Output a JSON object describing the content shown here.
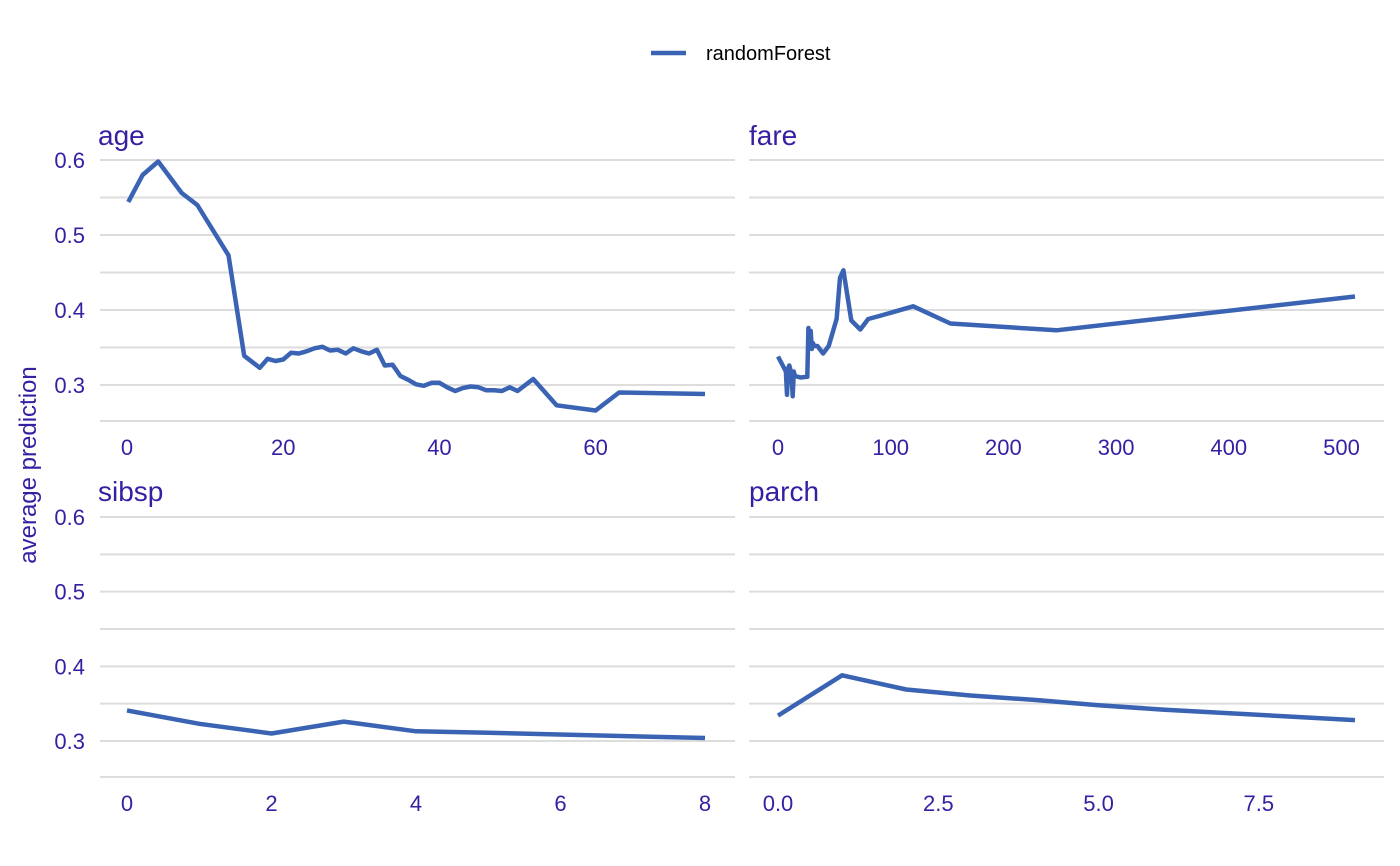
{
  "chart_data": {
    "type": "line",
    "legend": {
      "label": "randomForest",
      "color": "#3a64b3",
      "position": "top"
    },
    "ylabel": "average prediction",
    "ylim": [
      0.25,
      0.62
    ],
    "yticks": [
      0.3,
      0.4,
      0.5,
      0.6
    ],
    "ytick_labels": [
      "0.3",
      "0.4",
      "0.5",
      "0.6"
    ],
    "text_color": "#371ea3",
    "grid_color": "#dddddd",
    "panels": [
      {
        "title": "age",
        "xlim": [
          0,
          74
        ],
        "xticks": [
          0,
          20,
          40,
          60
        ],
        "xtick_labels": [
          "0",
          "20",
          "40",
          "60"
        ],
        "x": [
          0.17,
          2,
          4,
          7,
          9,
          13,
          15,
          17,
          18,
          19,
          20,
          21,
          22,
          23,
          24,
          25,
          26,
          27,
          28,
          29,
          30,
          31,
          32,
          33,
          34,
          35,
          36,
          37,
          38,
          39,
          40,
          41,
          42,
          43,
          44,
          45,
          46,
          47,
          48,
          49,
          50,
          52,
          55,
          60,
          63,
          74
        ],
        "y": [
          0.544,
          0.58,
          0.598,
          0.556,
          0.54,
          0.473,
          0.339,
          0.323,
          0.335,
          0.332,
          0.334,
          0.343,
          0.342,
          0.345,
          0.349,
          0.351,
          0.346,
          0.347,
          0.342,
          0.349,
          0.345,
          0.342,
          0.347,
          0.326,
          0.327,
          0.312,
          0.307,
          0.301,
          0.299,
          0.303,
          0.303,
          0.297,
          0.292,
          0.296,
          0.298,
          0.297,
          0.293,
          0.293,
          0.292,
          0.297,
          0.292,
          0.308,
          0.273,
          0.266,
          0.29,
          0.288
        ]
      },
      {
        "title": "fare",
        "xlim": [
          0,
          512
        ],
        "xticks": [
          0,
          100,
          200,
          300,
          400,
          500
        ],
        "xtick_labels": [
          "0",
          "100",
          "200",
          "300",
          "400",
          "500"
        ],
        "x": [
          0,
          7,
          8,
          9,
          10,
          12,
          13,
          14,
          15,
          20,
          26,
          27,
          28,
          29,
          30,
          31,
          32,
          35,
          40,
          45,
          52,
          55,
          58,
          65,
          73,
          80,
          90,
          120,
          153,
          247,
          512
        ],
        "y": [
          0.338,
          0.318,
          0.287,
          0.322,
          0.326,
          0.315,
          0.285,
          0.318,
          0.312,
          0.31,
          0.311,
          0.376,
          0.349,
          0.372,
          0.348,
          0.356,
          0.352,
          0.352,
          0.342,
          0.352,
          0.388,
          0.443,
          0.453,
          0.386,
          0.374,
          0.388,
          0.392,
          0.405,
          0.382,
          0.373,
          0.418
        ]
      },
      {
        "title": "sibsp",
        "xlim": [
          0,
          8
        ],
        "xticks": [
          0,
          2,
          4,
          6,
          8
        ],
        "xtick_labels": [
          "0",
          "2",
          "4",
          "6",
          "8"
        ],
        "x": [
          0,
          1,
          2,
          3,
          4,
          5,
          8
        ],
        "y": [
          0.341,
          0.323,
          0.31,
          0.326,
          0.313,
          0.311,
          0.304
        ]
      },
      {
        "title": "parch",
        "xlim": [
          0,
          9
        ],
        "xticks": [
          0,
          2.5,
          5,
          7.5
        ],
        "xtick_labels": [
          "0.0",
          "2.5",
          "5.0",
          "7.5"
        ],
        "x": [
          0,
          1,
          2,
          3,
          4,
          5,
          6,
          9
        ],
        "y": [
          0.334,
          0.388,
          0.369,
          0.361,
          0.355,
          0.348,
          0.342,
          0.328
        ]
      }
    ]
  }
}
